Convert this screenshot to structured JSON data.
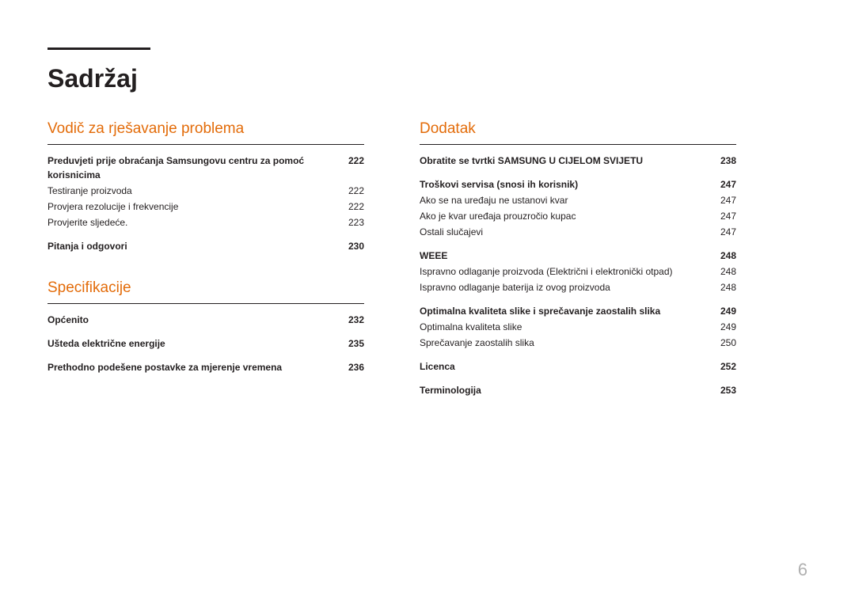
{
  "page_title": "Sadržaj",
  "page_number": "6",
  "colors": {
    "section_heading": "#e36c0a",
    "text": "#231f20",
    "page_number": "#b0b0b0",
    "background": "#ffffff"
  },
  "typography": {
    "title_fontsize": 32,
    "section_heading_fontsize": 19,
    "body_fontsize": 12,
    "page_number_fontsize": 22
  },
  "sections": {
    "troubleshooting": {
      "heading": "Vodič za rješavanje problema",
      "entries": [
        {
          "label": "Preduvjeti prije obraćanja Samsungovu centru za pomoć korisnicima",
          "page": "222",
          "bold": true
        },
        {
          "label": "Testiranje proizvoda",
          "page": "222",
          "bold": false
        },
        {
          "label": "Provjera rezolucije i frekvencije",
          "page": "222",
          "bold": false
        },
        {
          "label": "Provjerite sljedeće.",
          "page": "223",
          "bold": false
        }
      ],
      "qa": {
        "label": "Pitanja i odgovori",
        "page": "230",
        "bold": true
      }
    },
    "specs": {
      "heading": "Specifikacije",
      "entries": [
        {
          "label": "Općenito",
          "page": "232",
          "bold": true
        },
        {
          "label": "Ušteda električne energije",
          "page": "235",
          "bold": true
        },
        {
          "label": "Prethodno podešene postavke za mjerenje vremena",
          "page": "236",
          "bold": true
        }
      ]
    },
    "appendix": {
      "heading": "Dodatak",
      "groups": [
        [
          {
            "label": "Obratite se tvrtki SAMSUNG U CIJELOM SVIJETU",
            "page": "238",
            "bold": true
          }
        ],
        [
          {
            "label": "Troškovi servisa (snosi ih korisnik)",
            "page": "247",
            "bold": true
          },
          {
            "label": "Ako se na uređaju ne ustanovi kvar",
            "page": "247",
            "bold": false
          },
          {
            "label": "Ako je kvar uređaja prouzročio kupac",
            "page": "247",
            "bold": false
          },
          {
            "label": "Ostali slučajevi",
            "page": "247",
            "bold": false
          }
        ],
        [
          {
            "label": "WEEE",
            "page": "248",
            "bold": true
          },
          {
            "label": "Ispravno odlaganje proizvoda (Električni i elektronički otpad)",
            "page": "248",
            "bold": false
          },
          {
            "label": "Ispravno odlaganje baterija iz ovog proizvoda",
            "page": "248",
            "bold": false
          }
        ],
        [
          {
            "label": "Optimalna kvaliteta slike i sprečavanje zaostalih slika",
            "page": "249",
            "bold": true
          },
          {
            "label": "Optimalna kvaliteta slike",
            "page": "249",
            "bold": false
          },
          {
            "label": "Sprečavanje zaostalih slika",
            "page": "250",
            "bold": false
          }
        ],
        [
          {
            "label": "Licenca",
            "page": "252",
            "bold": true
          }
        ],
        [
          {
            "label": "Terminologija",
            "page": "253",
            "bold": true
          }
        ]
      ]
    }
  }
}
